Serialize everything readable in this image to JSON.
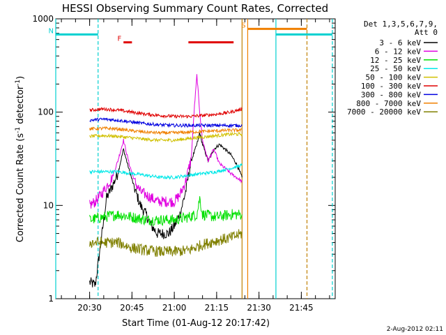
{
  "chart_data": {
    "type": "line",
    "title": "HESSI Observing Summary Count Rates, Corrected",
    "xlabel": "Start Time (01-Aug-12 20:17:42)",
    "ylabel": "Corrected Count Rate (s⁻¹ detector⁻¹)",
    "ylabel_main": "Corrected Count Rate (s",
    "ylabel_sup1": "-1",
    "ylabel_mid": " detector",
    "ylabel_sup2": "-1",
    "ylabel_end": ")",
    "footer_date": "2-Aug-2012 02:11",
    "x_scale": "time (minutes)",
    "xlim": [
      "20:18",
      "21:57"
    ],
    "ylim": [
      1,
      1000
    ],
    "y_scale": "log",
    "x_ticks": [
      "20:30",
      "20:45",
      "21:00",
      "21:15",
      "21:30",
      "21:45"
    ],
    "y_ticks": [
      "1",
      "10",
      "100",
      "1000"
    ],
    "legend_header": [
      "Det 1,3,5,6,7,9,",
      "Att 0"
    ],
    "series": [
      {
        "name": "3 - 6 keV",
        "color": "#000000",
        "x": [
          "20:30",
          "20:32",
          "20:34",
          "20:36",
          "20:38",
          "20:40",
          "20:42",
          "20:44",
          "20:46",
          "20:48",
          "20:50",
          "20:52",
          "20:54",
          "20:56",
          "20:58",
          "21:00",
          "21:02",
          "21:04",
          "21:06",
          "21:08",
          "21:09",
          "21:10",
          "21:12",
          "21:14",
          "21:16",
          "21:18",
          "21:20",
          "21:22",
          "21:24"
        ],
        "y": [
          1.5,
          1.4,
          4.0,
          12,
          16,
          22,
          40,
          24,
          15,
          10,
          8,
          6,
          5,
          5,
          5,
          6,
          8,
          14,
          30,
          45,
          60,
          45,
          30,
          40,
          45,
          40,
          35,
          28,
          20
        ]
      },
      {
        "name": "6 - 12 keV",
        "color": "#e000e0",
        "x": [
          "20:30",
          "20:32",
          "20:34",
          "20:36",
          "20:38",
          "20:40",
          "20:42",
          "20:44",
          "20:46",
          "20:48",
          "20:50",
          "20:52",
          "20:54",
          "20:56",
          "20:58",
          "21:00",
          "21:02",
          "21:04",
          "21:06",
          "21:07",
          "21:08",
          "21:09",
          "21:10",
          "21:12",
          "21:14",
          "21:16",
          "21:18",
          "21:20",
          "21:22",
          "21:24"
        ],
        "y": [
          10,
          11,
          13,
          16,
          20,
          30,
          50,
          28,
          18,
          14,
          13,
          12,
          11,
          11,
          11,
          11,
          13,
          18,
          32,
          100,
          250,
          100,
          50,
          30,
          40,
          28,
          25,
          22,
          20,
          18
        ]
      },
      {
        "name": "12 - 25 keV",
        "color": "#00e000",
        "x": [
          "20:30",
          "20:35",
          "20:40",
          "20:45",
          "20:50",
          "20:55",
          "21:00",
          "21:05",
          "21:08",
          "21:09",
          "21:10",
          "21:15",
          "21:20",
          "21:24"
        ],
        "y": [
          7,
          7.5,
          8,
          7.5,
          7,
          7,
          7,
          7.5,
          8,
          12,
          8,
          7.5,
          8,
          8
        ]
      },
      {
        "name": "25 - 50 keV",
        "color": "#00e8e8",
        "x": [
          "20:30",
          "20:35",
          "20:40",
          "20:45",
          "20:50",
          "20:55",
          "21:00",
          "21:05",
          "21:10",
          "21:15",
          "21:20",
          "21:24"
        ],
        "y": [
          23,
          23,
          23,
          22,
          21,
          20,
          20,
          21,
          22,
          23,
          25,
          27
        ]
      },
      {
        "name": "50 - 100 keV",
        "color": "#d0c000",
        "x": [
          "20:30",
          "20:35",
          "20:40",
          "20:45",
          "20:50",
          "20:55",
          "21:00",
          "21:05",
          "21:10",
          "21:15",
          "21:20",
          "21:24"
        ],
        "y": [
          55,
          56,
          55,
          53,
          51,
          50,
          50,
          52,
          54,
          56,
          58,
          58
        ]
      },
      {
        "name": "100 - 300 keV",
        "color": "#e00000",
        "x": [
          "20:30",
          "20:35",
          "20:40",
          "20:45",
          "20:50",
          "20:55",
          "21:00",
          "21:05",
          "21:10",
          "21:15",
          "21:20",
          "21:24"
        ],
        "y": [
          105,
          108,
          105,
          100,
          95,
          92,
          90,
          90,
          92,
          95,
          100,
          108
        ]
      },
      {
        "name": "300 - 800 keV",
        "color": "#0000e0",
        "x": [
          "20:30",
          "20:35",
          "20:40",
          "20:45",
          "20:50",
          "20:55",
          "21:00",
          "21:05",
          "21:10",
          "21:15",
          "21:20",
          "21:24"
        ],
        "y": [
          82,
          84,
          82,
          78,
          75,
          73,
          72,
          72,
          72,
          72,
          72,
          72
        ]
      },
      {
        "name": "800 - 7000 keV",
        "color": "#f08000",
        "x": [
          "20:30",
          "20:35",
          "20:40",
          "20:45",
          "20:50",
          "20:55",
          "21:00",
          "21:05",
          "21:10",
          "21:15",
          "21:20",
          "21:24"
        ],
        "y": [
          66,
          67,
          66,
          63,
          61,
          60,
          60,
          61,
          62,
          63,
          64,
          64
        ]
      },
      {
        "name": "7000 - 20000 keV",
        "color": "#808000",
        "x": [
          "20:30",
          "20:35",
          "20:40",
          "20:45",
          "20:50",
          "20:55",
          "21:00",
          "21:05",
          "21:10",
          "21:15",
          "21:20",
          "21:24"
        ],
        "y": [
          4.0,
          4.0,
          4.0,
          3.5,
          3.3,
          3.2,
          3.2,
          3.3,
          3.8,
          4.2,
          4.5,
          5.0
        ]
      }
    ],
    "annotations": {
      "flags": [
        {
          "label": "N",
          "color": "#00d0d0",
          "start": "20:18",
          "end": "20:33",
          "level": 680
        },
        {
          "label": "F",
          "color": "#e00000",
          "start": "20:42",
          "end": "20:45",
          "level": 560
        },
        {
          "label": "",
          "color": "#e00000",
          "start": "21:05",
          "end": "21:21",
          "level": 560
        },
        {
          "label": "S",
          "color": "#f08000",
          "start": "21:26",
          "end": "21:47",
          "level": 780
        },
        {
          "label": "",
          "color": "#00d0d0",
          "start": "21:36",
          "end": "21:56",
          "level": 680
        }
      ],
      "vlines": [
        {
          "t": "20:18",
          "color": "#00d0d0",
          "style": "solid"
        },
        {
          "t": "20:33",
          "color": "#00d0d0",
          "style": "dashed"
        },
        {
          "t": "21:24",
          "color": "#c08000",
          "style": "solid"
        },
        {
          "t": "21:26",
          "color": "#f08000",
          "style": "solid"
        },
        {
          "t": "21:36",
          "color": "#00d0d0",
          "style": "solid"
        },
        {
          "t": "21:47",
          "color": "#c08000",
          "style": "dashed"
        },
        {
          "t": "21:56",
          "color": "#00d0d0",
          "style": "dashed"
        }
      ]
    }
  }
}
